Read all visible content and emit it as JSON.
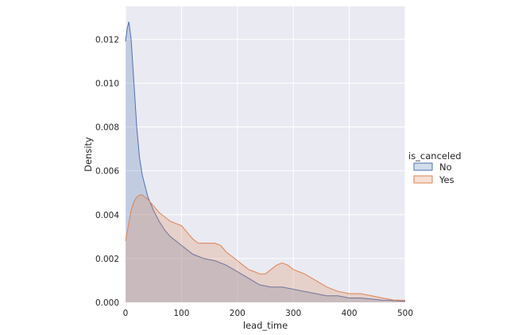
{
  "chart_data": {
    "type": "area",
    "xlabel": "lead_time",
    "ylabel": "Density",
    "xlim": [
      0,
      500
    ],
    "ylim": [
      0,
      0.0135
    ],
    "xticks": [
      0,
      100,
      200,
      300,
      400,
      500
    ],
    "xtick_labels": [
      "0",
      "100",
      "200",
      "300",
      "400",
      "500"
    ],
    "yticks": [
      0.0,
      0.002,
      0.004,
      0.006,
      0.008,
      0.01,
      0.012
    ],
    "ytick_labels": [
      "0.000",
      "0.002",
      "0.004",
      "0.006",
      "0.008",
      "0.010",
      "0.012"
    ],
    "grid": true,
    "legend": {
      "title": "is_canceled",
      "placement": "right"
    },
    "series": [
      {
        "name": "No",
        "color": "#4c72b0",
        "points": [
          [
            0,
            0.0119
          ],
          [
            3,
            0.0125
          ],
          [
            6,
            0.0128
          ],
          [
            10,
            0.012
          ],
          [
            15,
            0.01
          ],
          [
            20,
            0.008
          ],
          [
            25,
            0.0066
          ],
          [
            30,
            0.0058
          ],
          [
            40,
            0.0048
          ],
          [
            50,
            0.0042
          ],
          [
            60,
            0.0037
          ],
          [
            70,
            0.0033
          ],
          [
            80,
            0.003
          ],
          [
            90,
            0.0028
          ],
          [
            100,
            0.0026
          ],
          [
            120,
            0.0022
          ],
          [
            140,
            0.002
          ],
          [
            160,
            0.0019
          ],
          [
            180,
            0.0017
          ],
          [
            200,
            0.0014
          ],
          [
            220,
            0.0011
          ],
          [
            240,
            0.0008
          ],
          [
            260,
            0.0007
          ],
          [
            280,
            0.0007
          ],
          [
            300,
            0.0006
          ],
          [
            320,
            0.0005
          ],
          [
            340,
            0.0004
          ],
          [
            360,
            0.0003
          ],
          [
            380,
            0.0003
          ],
          [
            400,
            0.0002
          ],
          [
            420,
            0.0002
          ],
          [
            440,
            0.00015
          ],
          [
            460,
            0.0001
          ],
          [
            480,
            8e-05
          ],
          [
            500,
            5e-05
          ]
        ]
      },
      {
        "name": "Yes",
        "color": "#dd8452",
        "points": [
          [
            0,
            0.0028
          ],
          [
            5,
            0.0035
          ],
          [
            10,
            0.0042
          ],
          [
            15,
            0.0046
          ],
          [
            20,
            0.0048
          ],
          [
            25,
            0.0049
          ],
          [
            30,
            0.0049
          ],
          [
            40,
            0.0047
          ],
          [
            50,
            0.0044
          ],
          [
            60,
            0.0041
          ],
          [
            70,
            0.0039
          ],
          [
            80,
            0.0037
          ],
          [
            90,
            0.0036
          ],
          [
            100,
            0.0035
          ],
          [
            110,
            0.0032
          ],
          [
            120,
            0.0029
          ],
          [
            130,
            0.0027
          ],
          [
            140,
            0.0027
          ],
          [
            150,
            0.0027
          ],
          [
            160,
            0.0027
          ],
          [
            170,
            0.0026
          ],
          [
            180,
            0.0023
          ],
          [
            190,
            0.0021
          ],
          [
            200,
            0.0019
          ],
          [
            210,
            0.0017
          ],
          [
            220,
            0.0015
          ],
          [
            230,
            0.0014
          ],
          [
            240,
            0.0013
          ],
          [
            250,
            0.0013
          ],
          [
            260,
            0.0015
          ],
          [
            270,
            0.0017
          ],
          [
            280,
            0.0018
          ],
          [
            290,
            0.0017
          ],
          [
            300,
            0.0015
          ],
          [
            320,
            0.0013
          ],
          [
            340,
            0.001
          ],
          [
            360,
            0.0007
          ],
          [
            380,
            0.0005
          ],
          [
            400,
            0.0004
          ],
          [
            420,
            0.0004
          ],
          [
            440,
            0.0003
          ],
          [
            460,
            0.0002
          ],
          [
            480,
            0.0001
          ],
          [
            500,
            0.0001
          ]
        ]
      }
    ]
  }
}
